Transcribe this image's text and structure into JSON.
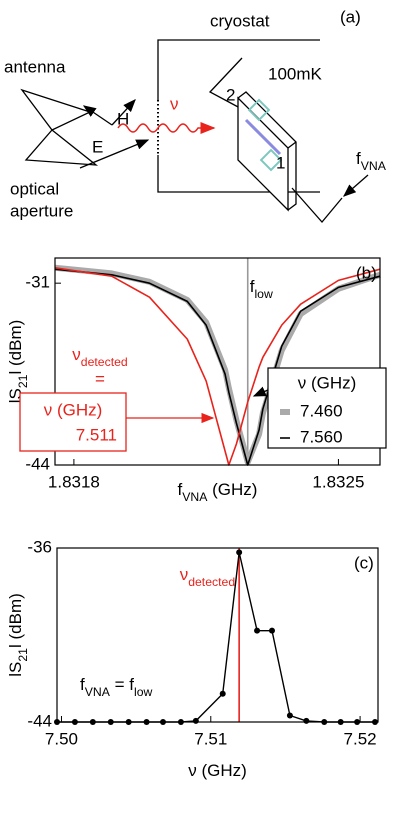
{
  "diagram": {
    "label": "(a)",
    "cryostat": "cryostat",
    "antenna": "antenna",
    "h": "H",
    "e": "E",
    "nu": "ν",
    "aperture": [
      "optical",
      "aperture"
    ],
    "temperature": "100mK",
    "port2": "2",
    "port1": "1",
    "fvna": [
      {
        "t": "f"
      },
      {
        "t": "VNA",
        "sub": true
      }
    ]
  },
  "chart_data": [
    {
      "type": "line",
      "panel_label": "(b)",
      "xlabel": [
        {
          "t": "f"
        },
        {
          "t": "VNA",
          "sub": true
        },
        {
          "t": " (GHz)"
        }
      ],
      "ylabel": [
        {
          "t": "lS"
        },
        {
          "t": "21",
          "sub": true
        },
        {
          "t": "l (dBm)"
        }
      ],
      "x": [
        1.83175,
        1.8319,
        1.832,
        1.8321,
        1.83215,
        1.8322,
        1.83221,
        1.83223,
        1.83226,
        1.83229,
        1.8323,
        1.83235,
        1.8324,
        1.8325,
        1.83261
      ],
      "series": [
        {
          "name": "7.460",
          "color": "#aaaaaa",
          "values": [
            -29.9,
            -30.3,
            -30.9,
            -32.2,
            -33.8,
            -37.2,
            -38.5,
            -40.8,
            -43.8,
            -41.8,
            -40.3,
            -35.8,
            -33.2,
            -31.4,
            -30.4
          ]
        },
        {
          "name": "7.560",
          "color": "#000000",
          "values": [
            -30.0,
            -30.4,
            -31.0,
            -32.3,
            -34.0,
            -37.5,
            -38.8,
            -41.0,
            -44.0,
            -41.5,
            -40.0,
            -35.5,
            -33.0,
            -31.3,
            -30.5
          ]
        },
        {
          "name": "7.511",
          "color": "#e8231c",
          "annotation": true,
          "values": [
            -29.9,
            -30.5,
            -32.0,
            -35.0,
            -38.0,
            -43.0,
            -44.0,
            -42.5,
            -39.5,
            -37.0,
            -36.3,
            -34.0,
            -32.5,
            -30.8,
            -30.0
          ]
        }
      ],
      "legend_title": "ν (GHz)",
      "detected_label": [
        {
          "t": "ν"
        },
        {
          "t": "detected",
          "sub": true
        }
      ],
      "equals": "=",
      "detected_box_title": "ν (GHz)",
      "xlim": [
        1.83175,
        1.83261
      ],
      "xticks": [
        1.8318,
        1.8325
      ],
      "ylim": [
        -44,
        -29.2
      ],
      "yticks": [
        -31,
        -44
      ],
      "vline": {
        "x": 1.83226,
        "color": "#999999",
        "label": [
          {
            "t": "f"
          },
          {
            "t": "low",
            "sub": true
          }
        ]
      }
    },
    {
      "type": "line",
      "panel_label": "(c)",
      "xlabel": [
        {
          "t": "ν (GHz)"
        }
      ],
      "ylabel": [
        {
          "t": "lS"
        },
        {
          "t": "21",
          "sub": true
        },
        {
          "t": "l (dBm)"
        }
      ],
      "x": [
        7.4997,
        7.5009,
        7.5021,
        7.5033,
        7.5045,
        7.5057,
        7.5068,
        7.508,
        7.509,
        7.5108,
        7.5119,
        7.5131,
        7.5141,
        7.5153,
        7.5164,
        7.5176,
        7.5187,
        7.5198,
        7.521
      ],
      "values": [
        -44,
        -44,
        -44,
        -44,
        -44,
        -44,
        -44,
        -44,
        -43.95,
        -42.7,
        -36.2,
        -39.8,
        -39.8,
        -43.7,
        -43.95,
        -44,
        -44,
        -44,
        -44
      ],
      "color": "#000000",
      "xlim": [
        7.4997,
        7.5212
      ],
      "xticks": [
        {
          "value": 7.5,
          "label": "7.50"
        },
        7.51,
        7.52
      ],
      "ylim": [
        -44,
        -36
      ],
      "yticks": [
        -36,
        -44
      ],
      "vline": {
        "x": 7.5119,
        "color": "#e8231c",
        "label": [
          {
            "t": "ν"
          },
          {
            "t": "detected",
            "sub": true
          }
        ]
      },
      "annotation": [
        {
          "t": "f"
        },
        {
          "t": "VNA",
          "sub": true
        },
        {
          "t": " = f"
        },
        {
          "t": "low",
          "sub": true
        }
      ]
    }
  ]
}
